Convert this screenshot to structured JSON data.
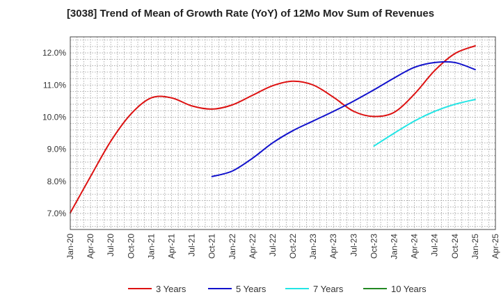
{
  "chart_data": {
    "type": "line",
    "title": "[3038]  Trend of Mean of Growth Rate (YoY) of 12Mo Mov Sum of Revenues",
    "xlabel": "",
    "ylabel": "",
    "x_ticks": [
      "Jan-20",
      "Apr-20",
      "Jul-20",
      "Oct-20",
      "Jan-21",
      "Apr-21",
      "Jul-21",
      "Oct-21",
      "Jan-22",
      "Apr-22",
      "Jul-22",
      "Oct-22",
      "Jan-23",
      "Apr-23",
      "Jul-23",
      "Oct-23",
      "Jan-24",
      "Apr-24",
      "Jul-24",
      "Oct-24",
      "Jan-25",
      "Apr-25"
    ],
    "y_ticks": [
      7.0,
      8.0,
      9.0,
      10.0,
      11.0,
      12.0
    ],
    "y_tick_labels": [
      "7.0%",
      "8.0%",
      "9.0%",
      "10.0%",
      "11.0%",
      "12.0%"
    ],
    "ylim": [
      6.5,
      12.5
    ],
    "xlim_quarters": [
      0,
      21
    ],
    "grid": true,
    "legend_position": "bottom",
    "series": [
      {
        "name": "3 Years",
        "color": "#dd1111",
        "points": [
          [
            0,
            7.02
          ],
          [
            1,
            8.15
          ],
          [
            2,
            9.25
          ],
          [
            3,
            10.1
          ],
          [
            4,
            10.6
          ],
          [
            5,
            10.6
          ],
          [
            6,
            10.35
          ],
          [
            7,
            10.25
          ],
          [
            8,
            10.38
          ],
          [
            9,
            10.68
          ],
          [
            10,
            10.98
          ],
          [
            11,
            11.12
          ],
          [
            12,
            11.0
          ],
          [
            13,
            10.62
          ],
          [
            14,
            10.18
          ],
          [
            15,
            10.02
          ],
          [
            16,
            10.15
          ],
          [
            17,
            10.72
          ],
          [
            18,
            11.45
          ],
          [
            19,
            11.98
          ],
          [
            20,
            12.22
          ]
        ]
      },
      {
        "name": "5 Years",
        "color": "#1111cc",
        "points": [
          [
            7,
            8.15
          ],
          [
            8,
            8.32
          ],
          [
            9,
            8.72
          ],
          [
            10,
            9.2
          ],
          [
            11,
            9.58
          ],
          [
            12,
            9.88
          ],
          [
            13,
            10.18
          ],
          [
            14,
            10.5
          ],
          [
            15,
            10.85
          ],
          [
            16,
            11.22
          ],
          [
            17,
            11.55
          ],
          [
            18,
            11.7
          ],
          [
            19,
            11.7
          ],
          [
            20,
            11.48
          ]
        ]
      },
      {
        "name": "7 Years",
        "color": "#22e5e5",
        "points": [
          [
            15,
            9.1
          ],
          [
            16,
            9.5
          ],
          [
            17,
            9.88
          ],
          [
            18,
            10.18
          ],
          [
            19,
            10.4
          ],
          [
            20,
            10.55
          ]
        ]
      },
      {
        "name": "10 Years",
        "color": "#228822",
        "points": []
      }
    ]
  }
}
